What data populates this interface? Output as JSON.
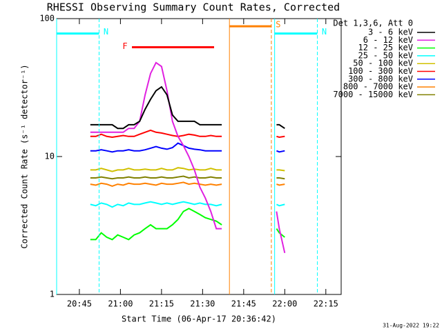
{
  "chart_data": {
    "type": "line",
    "title": "RHESSI Observing Summary Count Rates, Corrected",
    "x_label": "Start Time (06-Apr-17 20:36:42)",
    "y_label": "Corrected Count Rate (s⁻¹ detector⁻¹)",
    "legend_title": "Det 1,3,6, Att 0",
    "footer": "31-Aug-2022 19:22",
    "log_y": true,
    "legend_position": "right",
    "xlim": [
      1236.7,
      1340.6
    ],
    "xticks": [
      {
        "value": 1245,
        "label": "20:45"
      },
      {
        "value": 1260,
        "label": "21:00"
      },
      {
        "value": 1275,
        "label": "21:15"
      },
      {
        "value": 1290,
        "label": "21:30"
      },
      {
        "value": 1305,
        "label": "21:45"
      },
      {
        "value": 1320,
        "label": "22:00"
      },
      {
        "value": 1335,
        "label": "22:15"
      }
    ],
    "ylim": [
      1,
      100
    ],
    "yticks": [
      1,
      10,
      100
    ],
    "x": [
      1249,
      1251,
      1253,
      1255,
      1257,
      1259,
      1261,
      1263,
      1265,
      1267,
      1269,
      1271,
      1273,
      1275,
      1277,
      1279,
      1281,
      1283,
      1285,
      1287,
      1289,
      1291,
      1293,
      1295,
      1297,
      1307,
      1317,
      1318,
      1320
    ],
    "series": [
      {
        "name": "3 - 6 keV",
        "color": "#000000",
        "values": [
          17,
          17,
          17,
          17,
          17,
          16,
          16,
          17,
          17,
          18,
          22,
          26,
          30,
          32,
          28,
          20,
          18,
          18,
          18,
          18,
          17,
          17,
          17,
          17,
          17,
          null,
          17,
          17,
          16
        ]
      },
      {
        "name": "6 - 12 keV",
        "color": "#e020e0",
        "values": [
          15,
          15,
          15,
          15,
          15,
          15,
          15,
          16,
          16,
          18,
          28,
          40,
          48,
          45,
          30,
          18,
          14,
          12,
          10,
          8,
          6,
          5,
          4,
          3,
          3,
          null,
          4,
          3,
          2
        ]
      },
      {
        "name": "12 - 25 keV",
        "color": "#00ff00",
        "values": [
          2.5,
          2.5,
          2.8,
          2.6,
          2.5,
          2.7,
          2.6,
          2.5,
          2.7,
          2.8,
          3,
          3.2,
          3,
          3,
          3,
          3.2,
          3.5,
          4,
          4.2,
          4,
          3.8,
          3.6,
          3.5,
          3.4,
          3.2,
          null,
          3,
          2.8,
          2.6
        ]
      },
      {
        "name": "25 - 50 keV",
        "color": "#00ffff",
        "values": [
          4.5,
          4.4,
          4.6,
          4.5,
          4.3,
          4.5,
          4.4,
          4.6,
          4.5,
          4.5,
          4.6,
          4.7,
          4.6,
          4.5,
          4.6,
          4.5,
          4.6,
          4.7,
          4.6,
          4.5,
          4.6,
          4.5,
          4.5,
          4.4,
          4.5,
          null,
          4.5,
          4.4,
          4.5
        ]
      },
      {
        "name": "50 - 100 keV",
        "color": "#d0c000",
        "values": [
          8,
          8,
          8.2,
          8,
          7.8,
          8,
          8,
          8.2,
          8,
          8,
          8.1,
          8,
          8,
          8.2,
          8,
          8,
          8.3,
          8.2,
          8,
          8.1,
          8,
          8,
          8.2,
          8,
          8,
          null,
          8,
          8,
          7.9
        ]
      },
      {
        "name": "100 - 300 keV",
        "color": "#ff0000",
        "values": [
          14,
          14,
          14.5,
          14,
          13.8,
          14,
          14.2,
          14,
          14,
          14.5,
          15,
          15.5,
          15,
          14.8,
          14.5,
          14.2,
          14,
          14.2,
          14.5,
          14.3,
          14,
          14,
          14.2,
          14,
          14,
          null,
          14,
          13.8,
          14
        ]
      },
      {
        "name": "300 - 800 keV",
        "color": "#0000ff",
        "values": [
          11,
          11,
          11.2,
          11,
          10.8,
          11,
          11,
          11.2,
          11,
          11,
          11.2,
          11.5,
          11.8,
          11.5,
          11.3,
          11.6,
          12.5,
          12,
          11.5,
          11.3,
          11.2,
          11,
          11,
          11,
          11,
          null,
          11,
          10.8,
          11
        ]
      },
      {
        "name": "800 - 7000 keV",
        "color": "#ff8000",
        "values": [
          6.3,
          6.2,
          6.4,
          6.3,
          6.1,
          6.3,
          6.2,
          6.4,
          6.3,
          6.3,
          6.4,
          6.3,
          6.2,
          6.4,
          6.3,
          6.3,
          6.4,
          6.5,
          6.3,
          6.4,
          6.3,
          6.2,
          6.3,
          6.2,
          6.3,
          null,
          6.3,
          6.2,
          6.3
        ]
      },
      {
        "name": "7000 - 15000 keV",
        "color": "#808000",
        "values": [
          7,
          7,
          7.1,
          7,
          6.9,
          7,
          7,
          7.1,
          7,
          7,
          7.1,
          7,
          7,
          7.1,
          7,
          7,
          7.1,
          7.2,
          7,
          7.1,
          7,
          7,
          7.1,
          7,
          7,
          null,
          7,
          7,
          6.9
        ]
      }
    ],
    "attenuator_states": [
      {
        "label": "N",
        "color": "#00ffff",
        "start": 1236.7,
        "end": 1252.2,
        "level": 78,
        "bounds": true
      },
      {
        "label": "F",
        "color": "#ff0000",
        "start": 1264.2,
        "end": 1294.2,
        "level": 62,
        "bounds": false
      },
      {
        "label": "S",
        "color": "#ff8000",
        "start": 1299.8,
        "end": 1315.1,
        "level": 88,
        "bounds": true
      },
      {
        "label": "N",
        "color": "#00ffff",
        "start": 1316.3,
        "end": 1331.9,
        "level": 78,
        "bounds": true
      }
    ]
  }
}
